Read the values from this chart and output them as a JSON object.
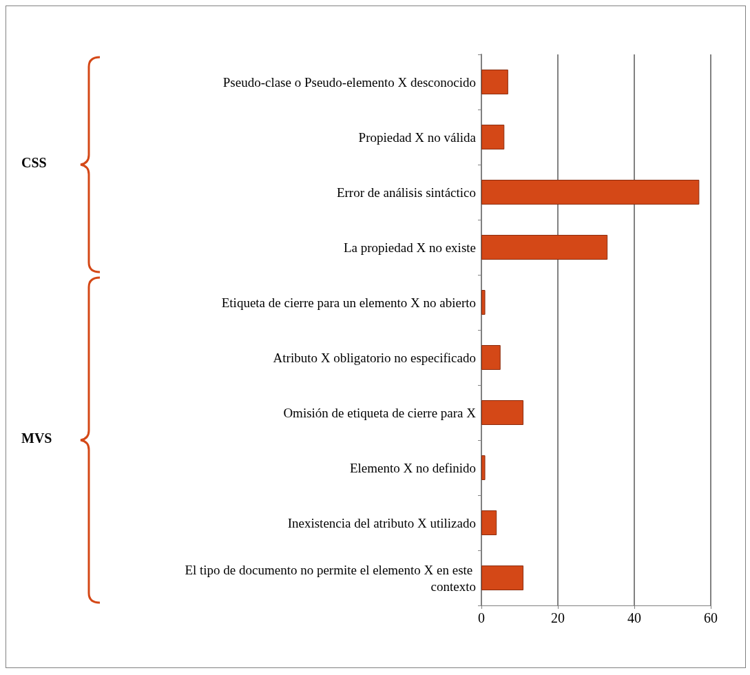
{
  "chart_data": {
    "type": "bar",
    "orientation": "horizontal",
    "categories": [
      "Pseudo-clase o Pseudo-elemento X desconocido",
      "Propiedad X no válida",
      "Error de análisis sintáctico",
      "La propiedad X no existe",
      "Etiqueta de cierre para un elemento X no abierto",
      "Atributo X obligatorio no especificado",
      "Omisión de etiqueta de cierre para X",
      "Elemento X no definido",
      "Inexistencia del atributo X utilizado",
      "El tipo de documento no permite el elemento X en este contexto"
    ],
    "values": [
      7,
      6,
      57,
      33,
      1,
      5,
      11,
      1,
      4,
      11
    ],
    "color": "#d44817",
    "xlim": [
      0,
      60
    ],
    "xticks": [
      0,
      20,
      40,
      60
    ],
    "grid": "x",
    "annotations": [
      "CSS",
      "MVS"
    ]
  }
}
